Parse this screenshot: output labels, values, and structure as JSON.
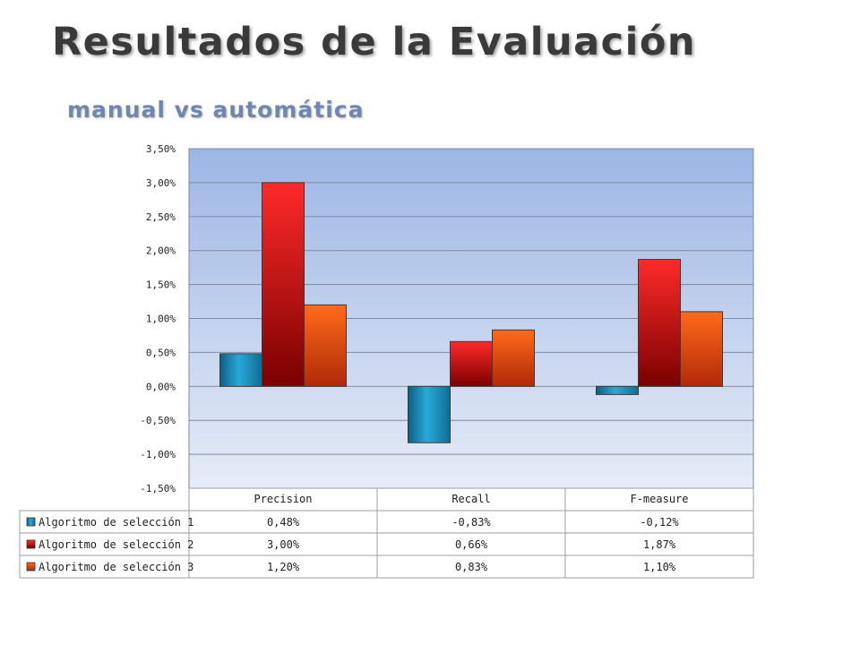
{
  "slide": {
    "title": "Resultados de la Evaluación",
    "subtitle": "manual vs automática"
  },
  "chart_data": {
    "type": "bar",
    "categories": [
      "Precision",
      "Recall",
      "F-measure"
    ],
    "series": [
      {
        "name": "Algoritmo de selección 1",
        "values": [
          0.48,
          -0.83,
          -0.12
        ],
        "labels": [
          "0,48%",
          "-0,83%",
          "-0,12%"
        ],
        "color": "#1a8fc0"
      },
      {
        "name": "Algoritmo de selección  2",
        "values": [
          3.0,
          0.66,
          1.87
        ],
        "labels": [
          "3,00%",
          "0,66%",
          "1,87%"
        ],
        "color": "#d61a1a"
      },
      {
        "name": "Algoritmo de selección  3",
        "values": [
          1.2,
          0.83,
          1.1
        ],
        "labels": [
          "1,20%",
          "0,83%",
          "1,10%"
        ],
        "color": "#e8501a"
      }
    ],
    "yticks": [
      "3,50%",
      "3,00%",
      "2,50%",
      "2,00%",
      "1,50%",
      "1,00%",
      "0,50%",
      "0,00%",
      "-0,50%",
      "-1,00%",
      "-1,50%"
    ],
    "ylim": [
      -1.5,
      3.5
    ],
    "grid": true,
    "legend": "data-table"
  }
}
